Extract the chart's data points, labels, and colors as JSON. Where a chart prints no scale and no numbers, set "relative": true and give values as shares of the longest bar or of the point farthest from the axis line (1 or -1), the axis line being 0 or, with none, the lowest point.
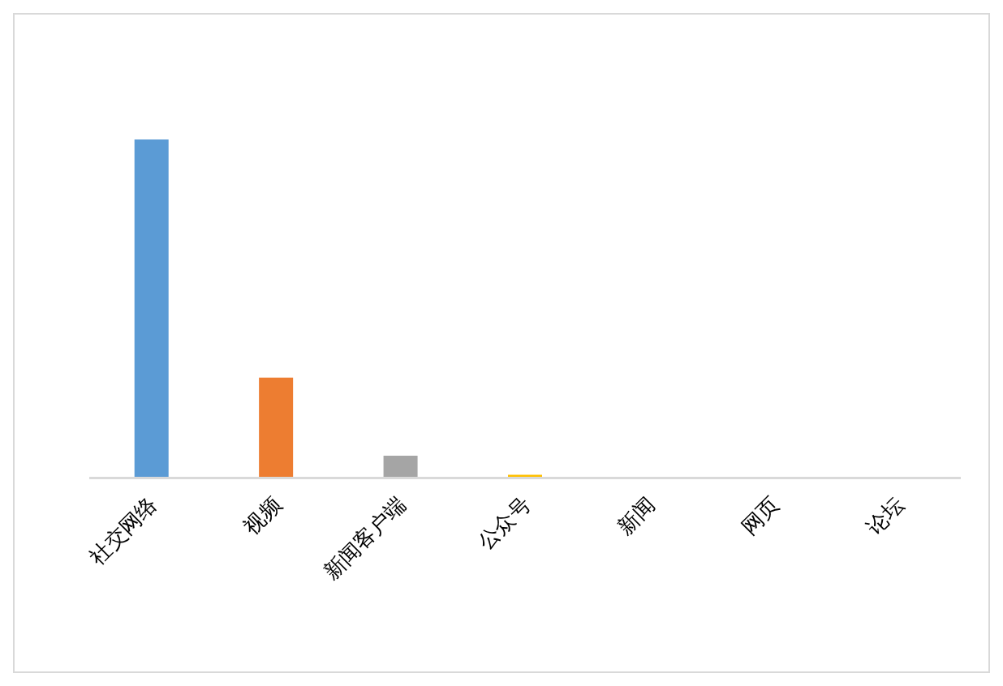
{
  "chart_data": {
    "type": "bar",
    "relative": true,
    "categories": [
      "社交网络",
      "视频",
      "新闻客户端",
      "公众号",
      "新闻",
      "网页",
      "论坛"
    ],
    "values": [
      1,
      0.294,
      0.0625,
      0.006,
      0,
      0,
      0
    ],
    "colors": [
      "#5b9bd5",
      "#ed7d31",
      "#a5a5a5",
      "#ffc000",
      "#4472c4",
      "#70ad47",
      "#255e91"
    ]
  }
}
